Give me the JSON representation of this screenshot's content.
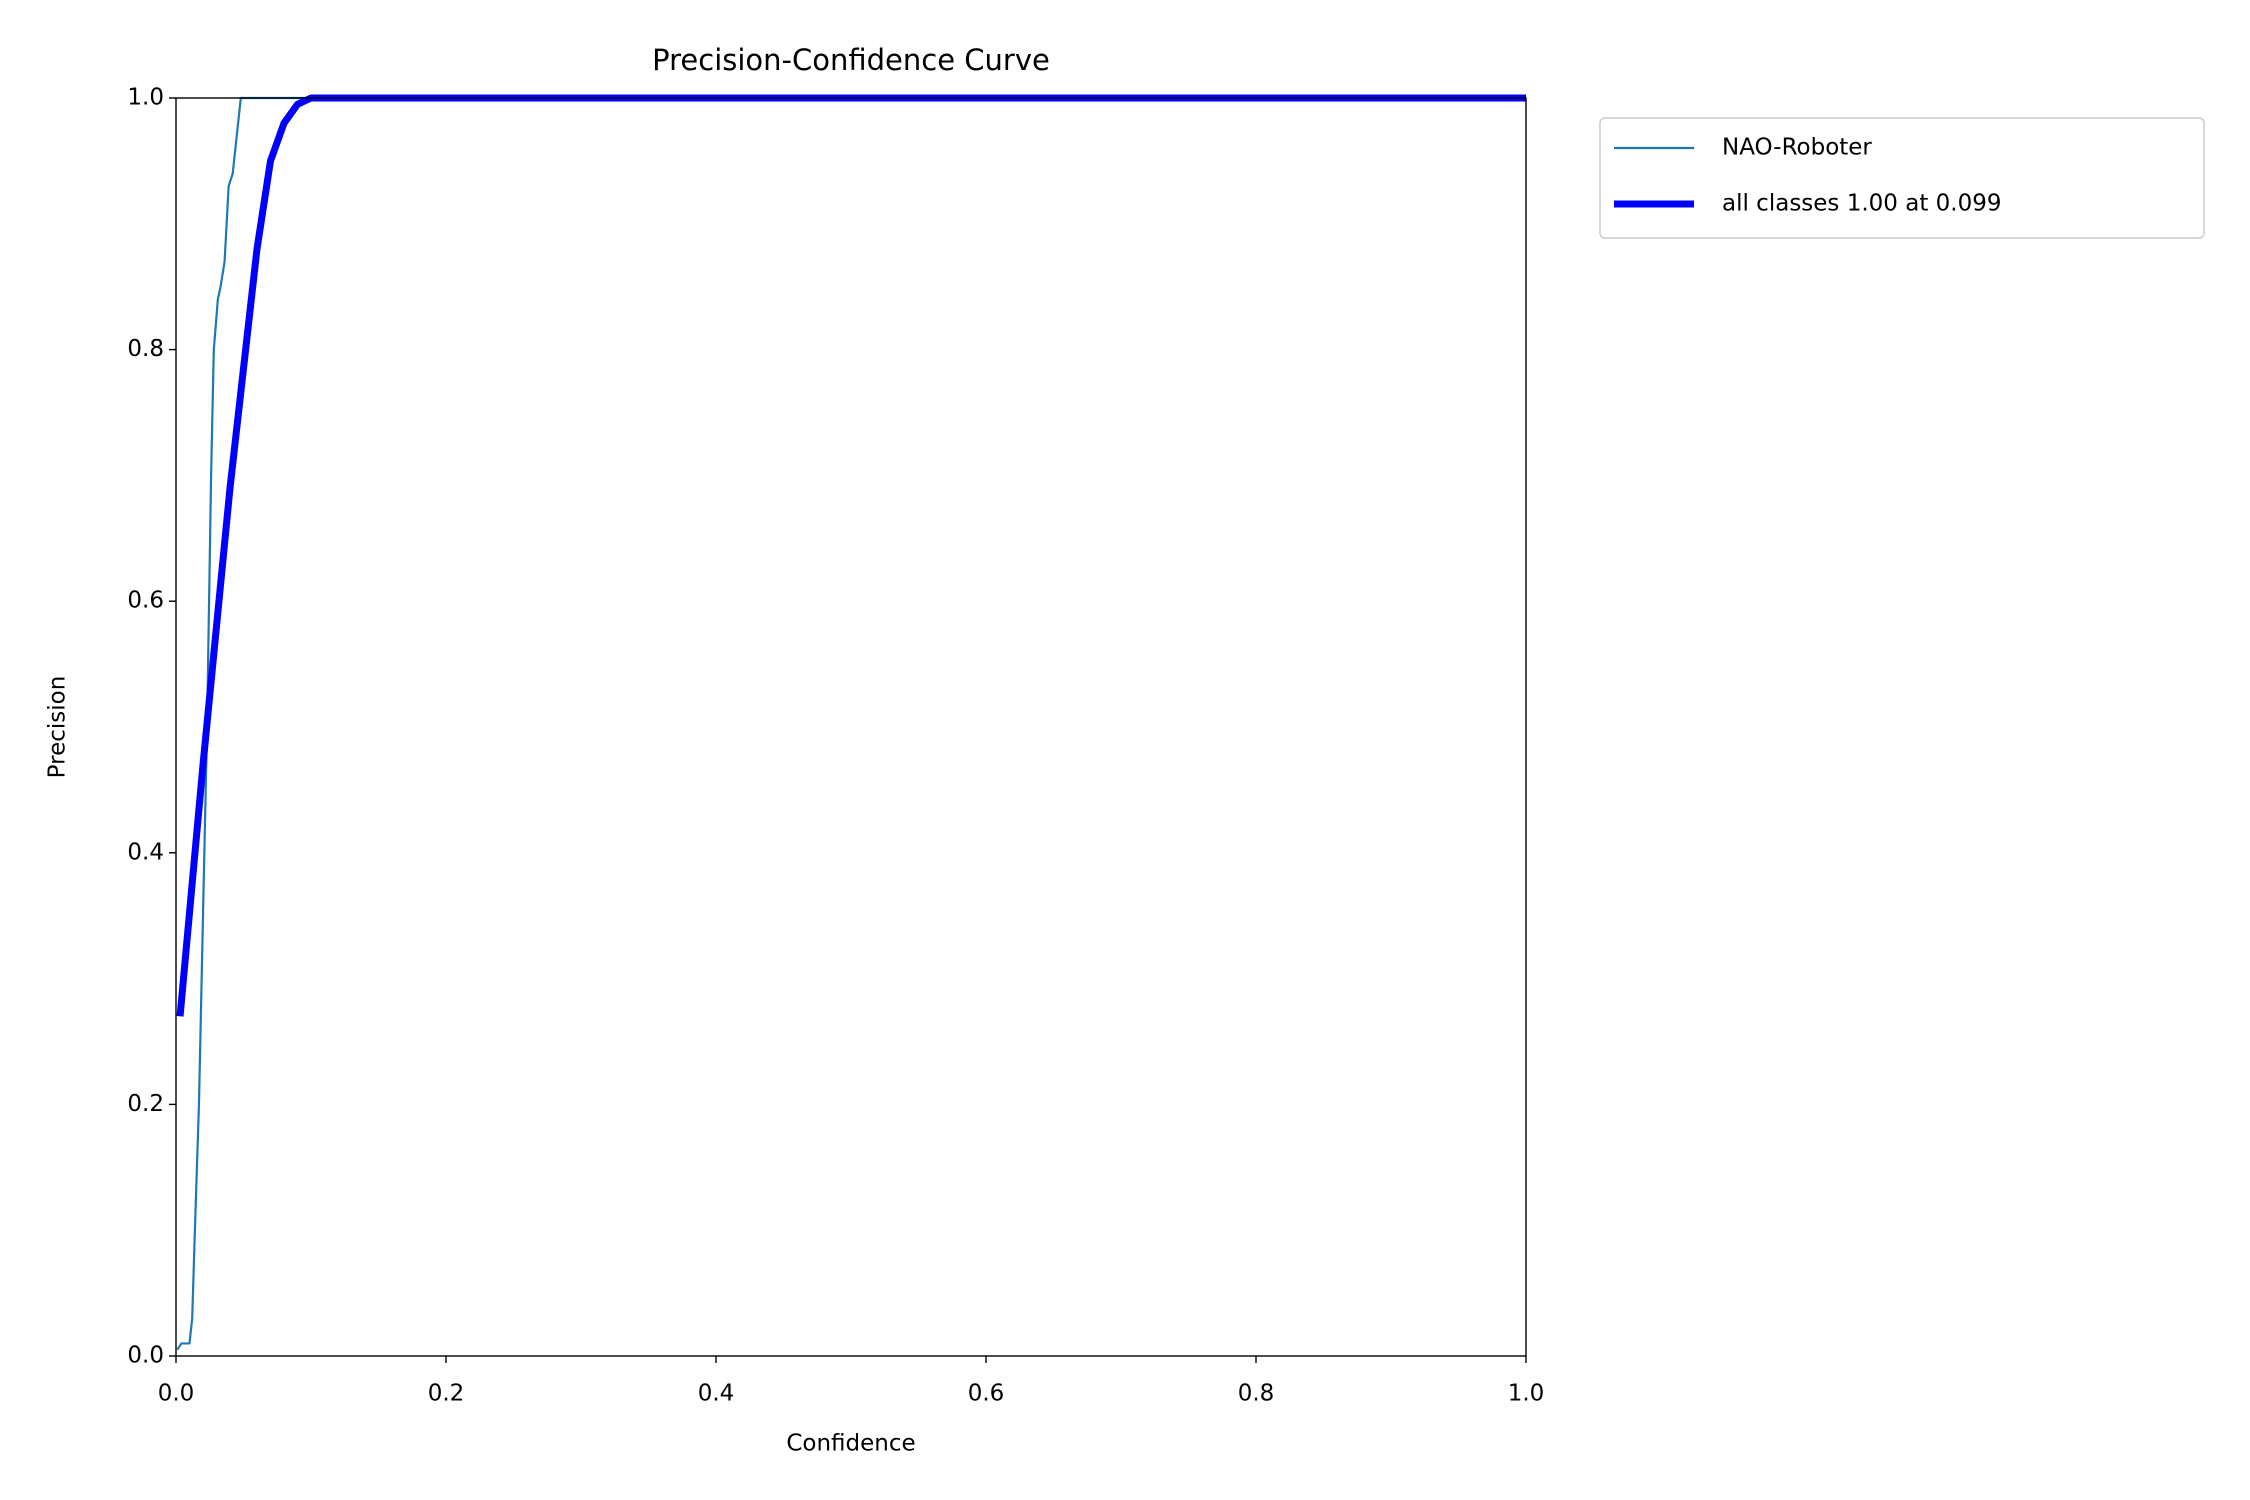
{
  "chart_data": {
    "type": "line",
    "title": "Precision-Confidence Curve",
    "x_label": "Confidence",
    "y_label": "Precision",
    "xlim": [
      0,
      1
    ],
    "ylim": [
      0,
      1
    ],
    "xticks": [
      {
        "value": 0,
        "label": "0.0"
      },
      0.2,
      0.4,
      0.6,
      0.8,
      {
        "value": 1,
        "label": "1.0"
      }
    ],
    "yticks": [
      {
        "value": 0,
        "label": "0.0"
      },
      0.2,
      0.4,
      0.6,
      0.8,
      {
        "value": 1,
        "label": "1.0"
      }
    ],
    "legend_position": "outside upper right",
    "series": [
      {
        "name": "NAO-Roboter",
        "color": "#1f77b4",
        "x": [
          0.001,
          0.004,
          0.01,
          0.012,
          0.014,
          0.017,
          0.02,
          0.023,
          0.026,
          0.028,
          0.031,
          0.033,
          0.036,
          0.039,
          0.042,
          0.045,
          0.048,
          1.0
        ],
        "values": [
          0.005,
          0.01,
          0.01,
          0.03,
          0.1,
          0.2,
          0.35,
          0.5,
          0.7,
          0.8,
          0.84,
          0.85,
          0.87,
          0.93,
          0.94,
          0.97,
          1.0,
          1.0
        ]
      },
      {
        "name": "all classes 1.00 at 0.099",
        "color": "#0000ff",
        "x": [
          0.003,
          0.02,
          0.04,
          0.06,
          0.07,
          0.08,
          0.09,
          0.1,
          1.0
        ],
        "values": [
          0.27,
          0.47,
          0.69,
          0.88,
          0.95,
          0.98,
          0.995,
          1.0,
          1.0
        ]
      }
    ]
  }
}
